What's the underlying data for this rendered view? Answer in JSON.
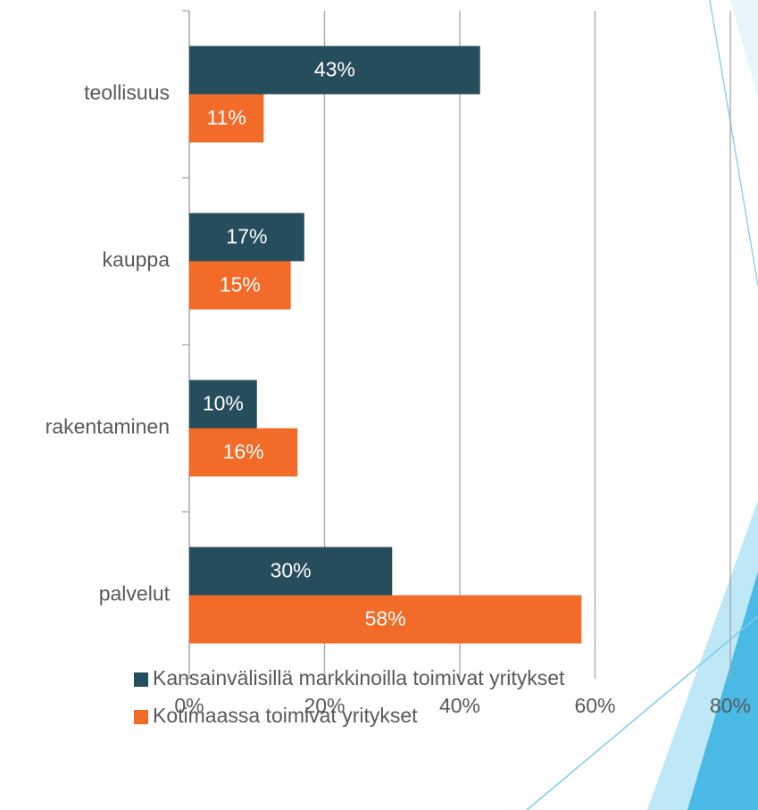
{
  "chart_data": {
    "type": "bar",
    "orientation": "horizontal",
    "categories": [
      "teollisuus",
      "kauppa",
      "rakentaminen",
      "palvelut"
    ],
    "series": [
      {
        "name": "Kansainvälisillä markkinoilla toimivat yritykset",
        "color": "#264d5c",
        "values": [
          43,
          17,
          10,
          30
        ],
        "value_labels": [
          "43%",
          "17%",
          "10%",
          "30%"
        ]
      },
      {
        "name": "Kotimaassa toimivat yritykset",
        "color": "#f26b28",
        "values": [
          11,
          15,
          16,
          58
        ],
        "value_labels": [
          "11%",
          "15%",
          "16%",
          "58%"
        ]
      }
    ],
    "xlim": [
      0,
      80
    ],
    "xticks": [
      {
        "value": 0,
        "label": "0%"
      },
      {
        "value": 20,
        "label": "20%"
      },
      {
        "value": 40,
        "label": "40%"
      },
      {
        "value": 60,
        "label": "60%"
      },
      {
        "value": 80,
        "label": "80%"
      }
    ],
    "grid": true
  }
}
